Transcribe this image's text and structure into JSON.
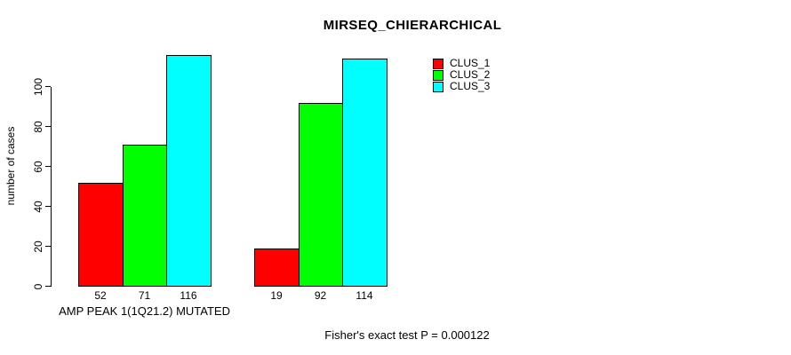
{
  "chart_data": {
    "type": "bar",
    "title": "MIRSEQ_CHIERARCHICAL",
    "ylabel": "number of cases",
    "xlabel": "",
    "groups": [
      "AMP PEAK  1(1Q21.2) MUTATED",
      ""
    ],
    "series": [
      {
        "name": "CLUS_1",
        "color": "#ff0000",
        "values": [
          52,
          19
        ]
      },
      {
        "name": "CLUS_2",
        "color": "#00ff00",
        "values": [
          71,
          92
        ]
      },
      {
        "name": "CLUS_3",
        "color": "#00ffff",
        "values": [
          116,
          114
        ]
      }
    ],
    "bar_value_labels": [
      [
        "52",
        "71",
        "116"
      ],
      [
        "19",
        "92",
        "114"
      ]
    ],
    "yticks": [
      "0",
      "20",
      "40",
      "60",
      "80",
      "100"
    ],
    "ylim": [
      0,
      116
    ],
    "grid": false,
    "legend_position": "right",
    "annotation": "Fisher's exact test P = 0.000122"
  }
}
